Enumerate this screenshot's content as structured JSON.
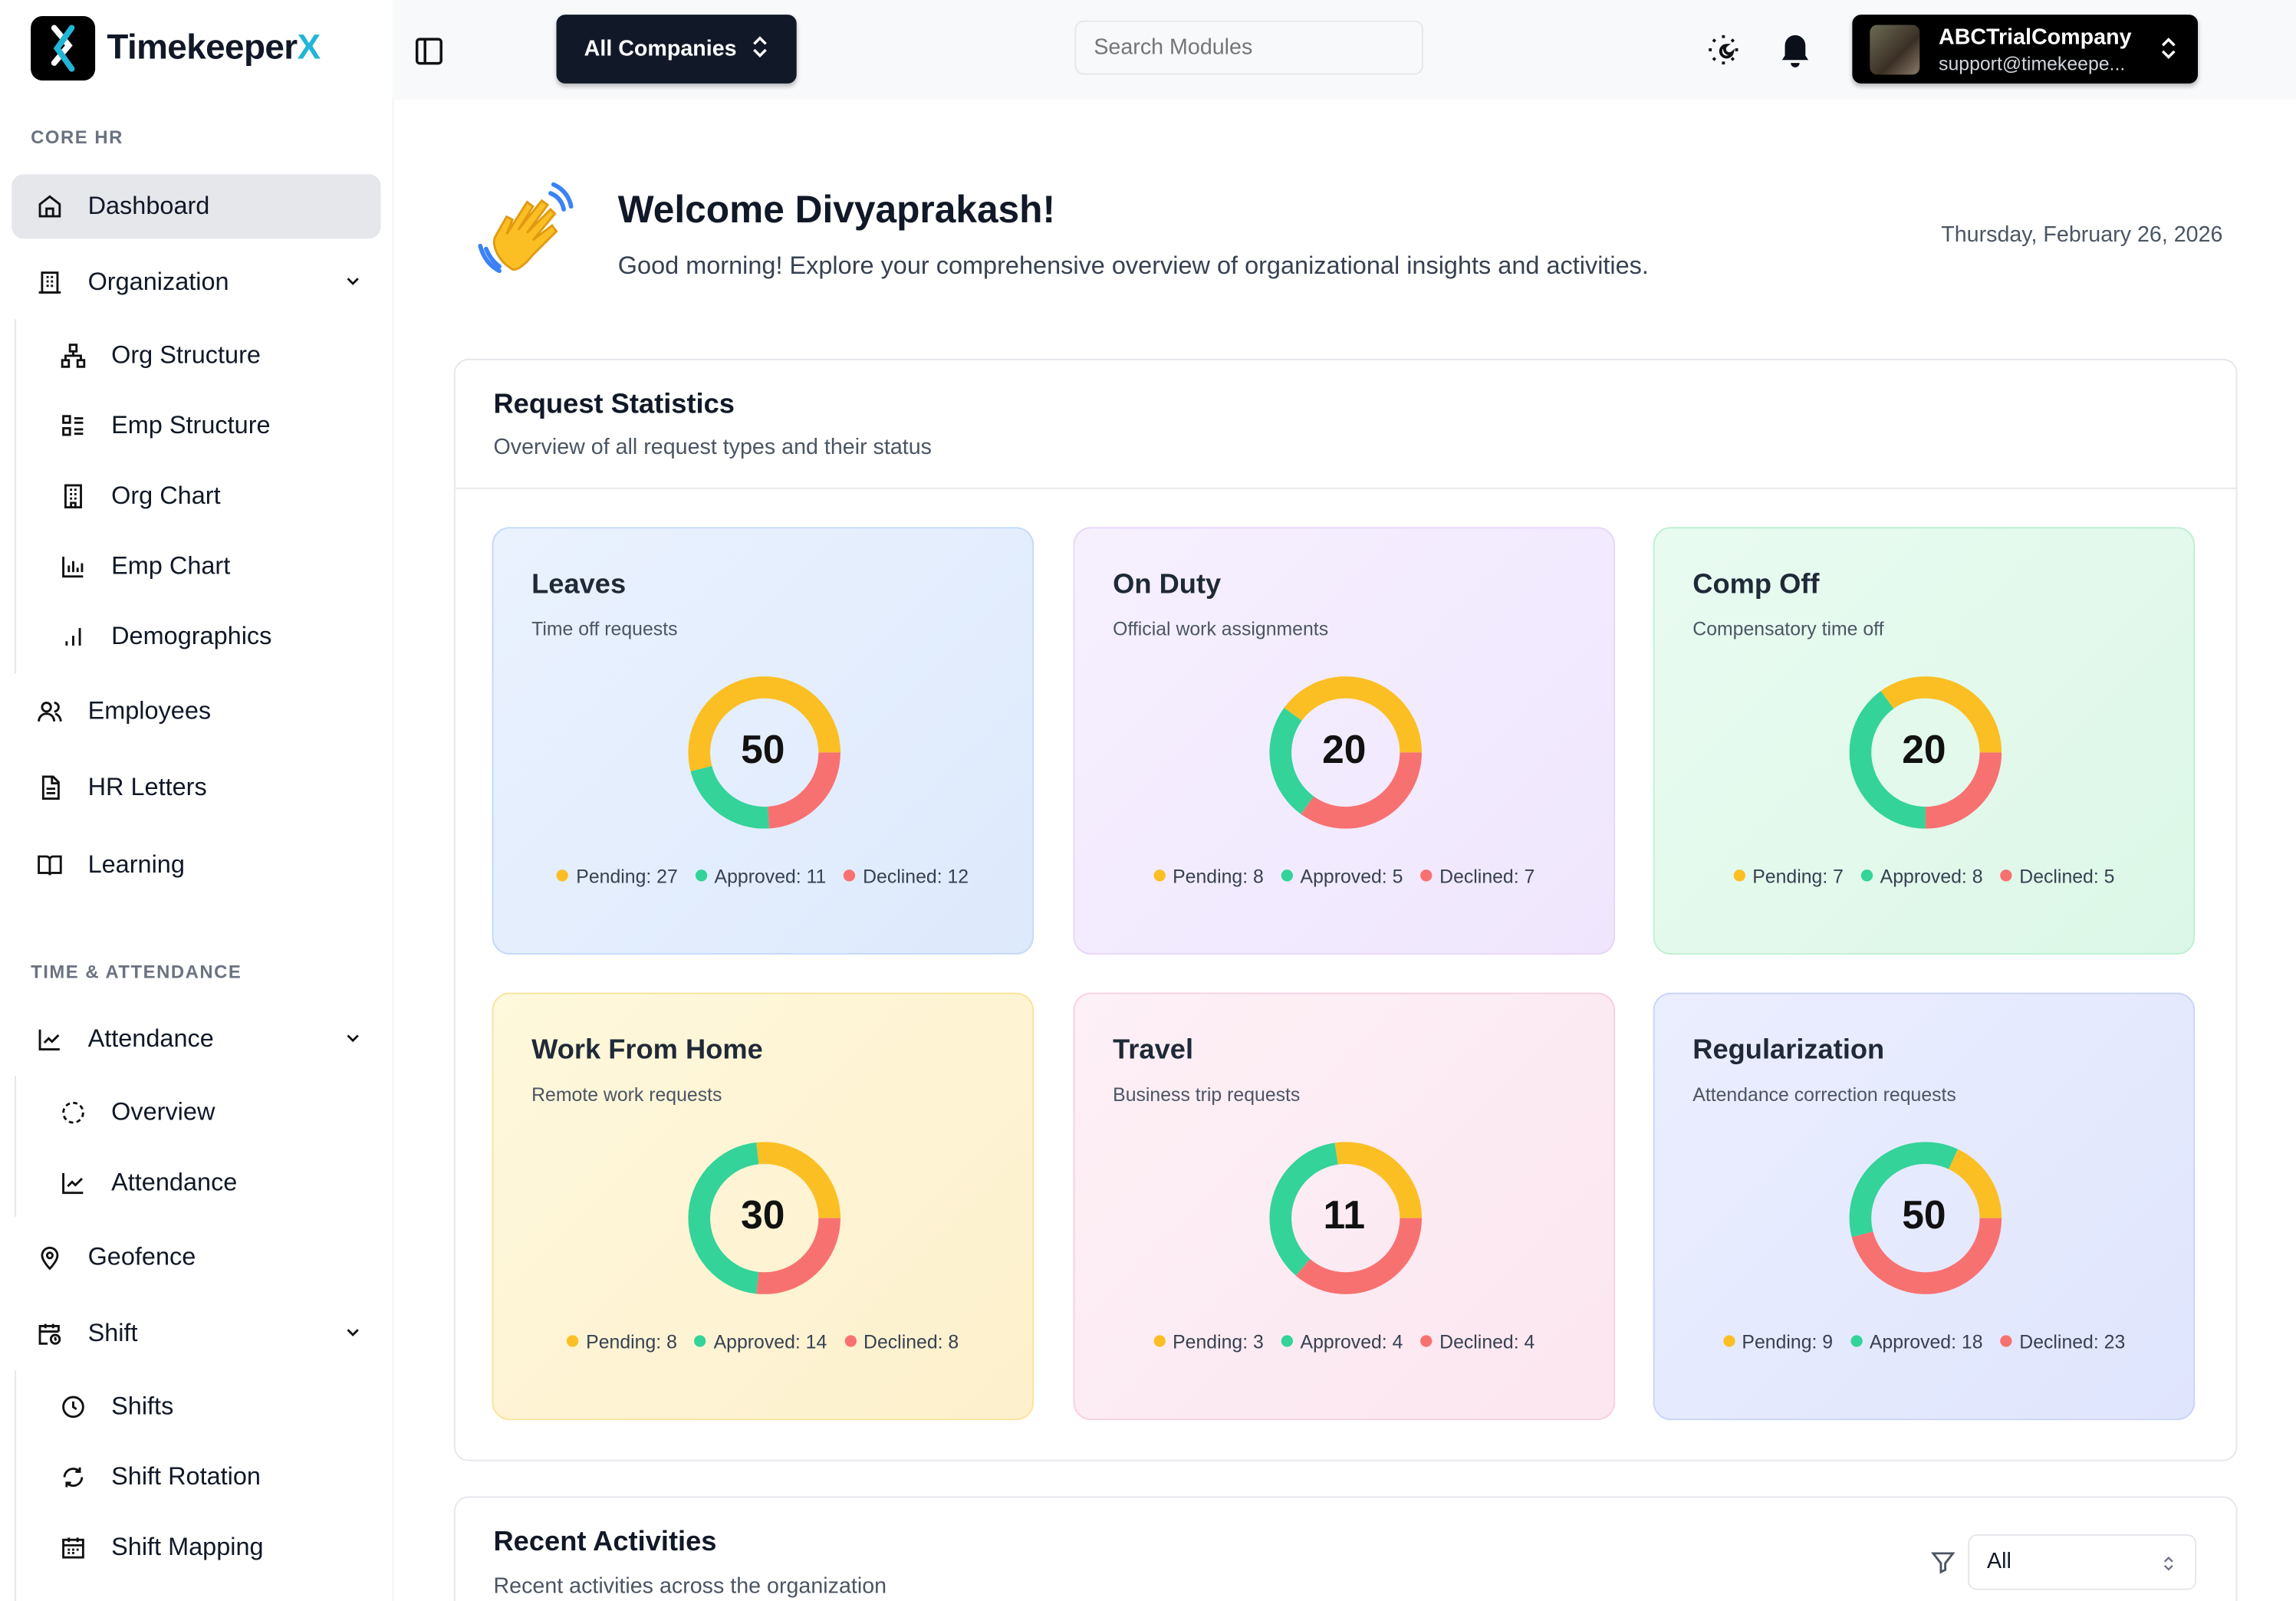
{
  "app": {
    "name": "Timekeeper",
    "name_accent": "X"
  },
  "header": {
    "company_selector": "All Companies",
    "search_placeholder": "Search Modules",
    "user_name": "ABCTrialCompany",
    "user_email": "support@timekeepe..."
  },
  "sidebar": {
    "section_core": "CORE HR",
    "core_items": [
      {
        "label": "Dashboard"
      },
      {
        "label": "Organization"
      },
      {
        "label": "Org Structure"
      },
      {
        "label": "Emp Structure"
      },
      {
        "label": "Org Chart"
      },
      {
        "label": "Emp Chart"
      },
      {
        "label": "Demographics"
      },
      {
        "label": "Employees"
      },
      {
        "label": "HR Letters"
      },
      {
        "label": "Learning"
      }
    ],
    "section_time": "TIME & ATTENDANCE",
    "time_items": [
      {
        "label": "Attendance"
      },
      {
        "label": "Overview"
      },
      {
        "label": "Attendance"
      },
      {
        "label": "Geofence"
      },
      {
        "label": "Shift"
      },
      {
        "label": "Shifts"
      },
      {
        "label": "Shift Rotation"
      },
      {
        "label": "Shift Mapping"
      }
    ]
  },
  "welcome": {
    "title": "Welcome Divyaprakash!",
    "subtitle": "Good morning! Explore your comprehensive overview of organizational insights and activities.",
    "date": "Thursday, February 26, 2026"
  },
  "request_statistics": {
    "title": "Request Statistics",
    "subtitle": "Overview of all request types and their status"
  },
  "status_colors": {
    "pending": "#fbbf24",
    "approved": "#34d399",
    "declined": "#f87171"
  },
  "chart_data": [
    {
      "type": "pie",
      "title": "Leaves",
      "subtitle": "Time off requests",
      "total": "50",
      "categories": [
        "Pending",
        "Approved",
        "Declined"
      ],
      "values": [
        27,
        11,
        12
      ],
      "legend": [
        "Pending: 27",
        "Approved: 11",
        "Declined: 12"
      ]
    },
    {
      "type": "pie",
      "title": "On Duty",
      "subtitle": "Official work assignments",
      "total": "20",
      "categories": [
        "Pending",
        "Approved",
        "Declined"
      ],
      "values": [
        8,
        5,
        7
      ],
      "legend": [
        "Pending: 8",
        "Approved: 5",
        "Declined: 7"
      ]
    },
    {
      "type": "pie",
      "title": "Comp Off",
      "subtitle": "Compensatory time off",
      "total": "20",
      "categories": [
        "Pending",
        "Approved",
        "Declined"
      ],
      "values": [
        7,
        8,
        5
      ],
      "legend": [
        "Pending: 7",
        "Approved: 8",
        "Declined: 5"
      ]
    },
    {
      "type": "pie",
      "title": "Work From Home",
      "subtitle": "Remote work requests",
      "total": "30",
      "categories": [
        "Pending",
        "Approved",
        "Declined"
      ],
      "values": [
        8,
        14,
        8
      ],
      "legend": [
        "Pending: 8",
        "Approved: 14",
        "Declined: 8"
      ]
    },
    {
      "type": "pie",
      "title": "Travel",
      "subtitle": "Business trip requests",
      "total": "11",
      "categories": [
        "Pending",
        "Approved",
        "Declined"
      ],
      "values": [
        3,
        4,
        4
      ],
      "legend": [
        "Pending: 3",
        "Approved: 4",
        "Declined: 4"
      ]
    },
    {
      "type": "pie",
      "title": "Regularization",
      "subtitle": "Attendance correction requests",
      "total": "50",
      "categories": [
        "Pending",
        "Approved",
        "Declined"
      ],
      "values": [
        9,
        18,
        23
      ],
      "legend": [
        "Pending: 9",
        "Approved: 18",
        "Declined: 23"
      ]
    }
  ],
  "recent_activities": {
    "title": "Recent Activities",
    "subtitle": "Recent activities across the organization",
    "filter_value": "All"
  }
}
